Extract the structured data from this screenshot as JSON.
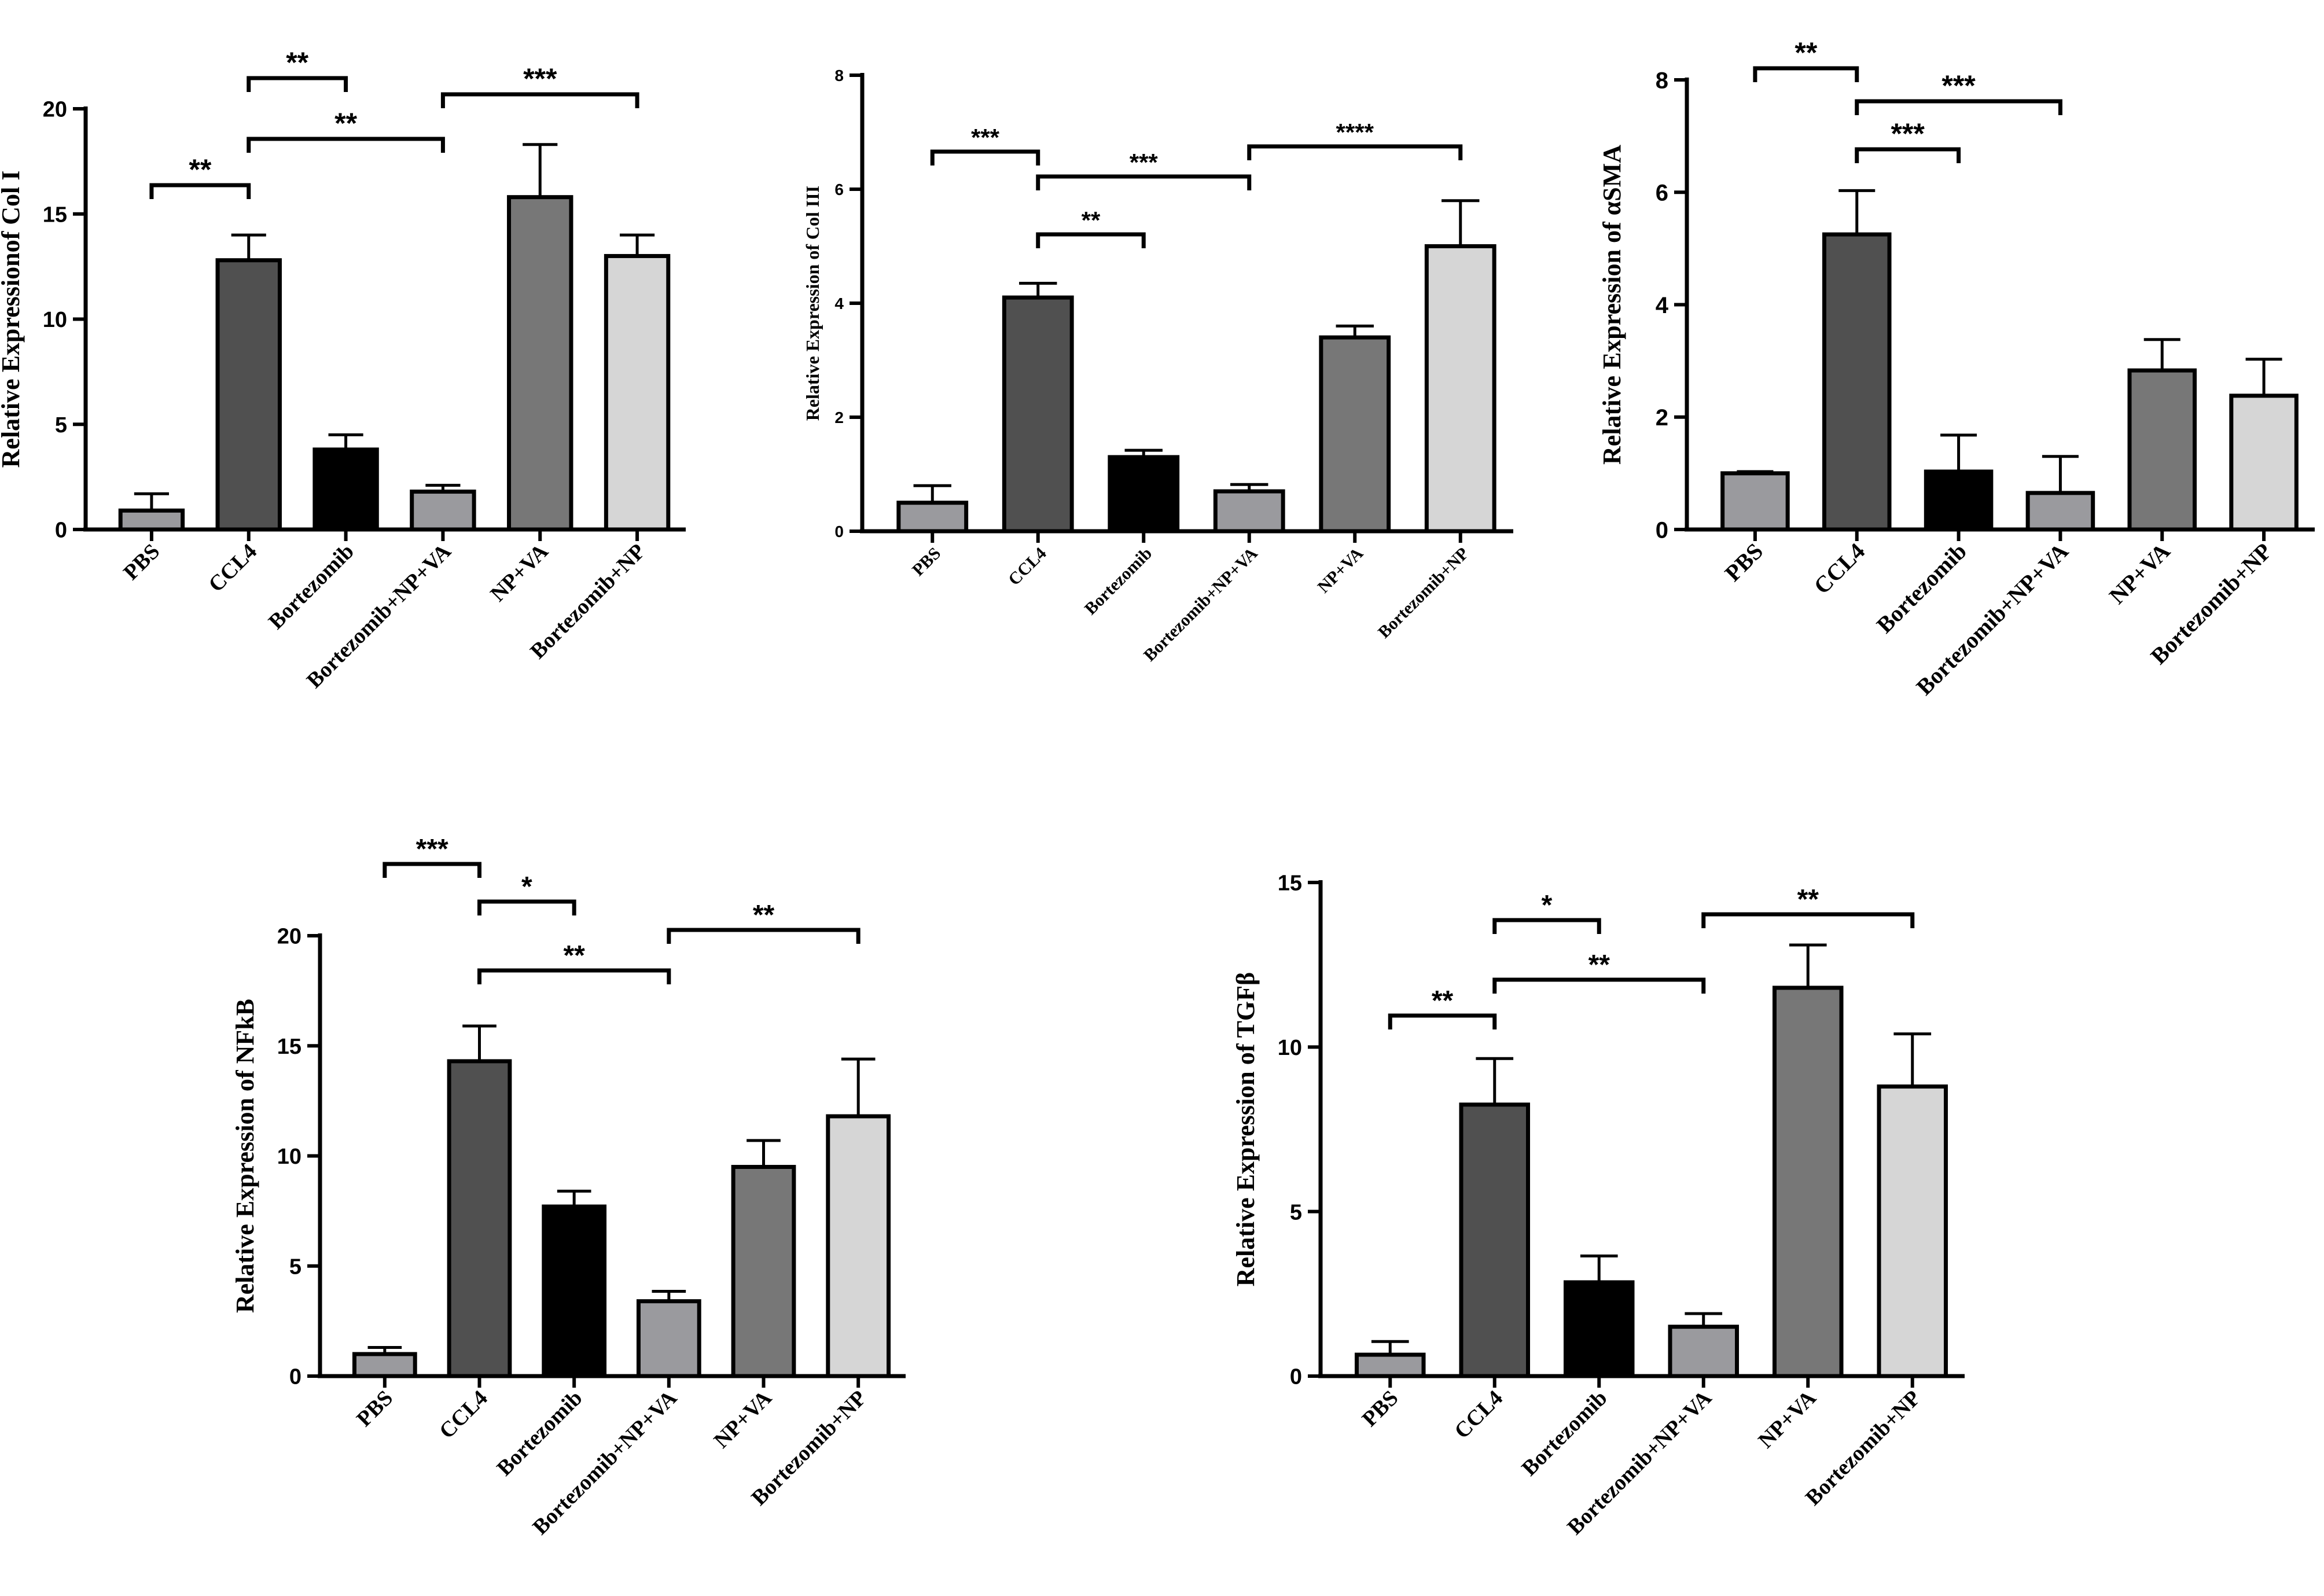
{
  "categories": [
    "PBS",
    "CCL4",
    "Bortezomib",
    "Bortezomib+NP+VA",
    "NP+VA",
    "Bortezomib+NP"
  ],
  "colors": {
    "PBS": "#9a9a9e",
    "CCL4": "#505050",
    "Bortezomib": "#000000",
    "Bortezomib+NP+VA": "#9a9a9e",
    "NP+VA": "#777777",
    "Bortezomib+NP": "#d6d6d6"
  },
  "chart_data": [
    {
      "type": "bar",
      "ylabel": "Relative Expressionof Col I",
      "ylim": [
        0,
        20
      ],
      "yticks": [
        "0",
        "5",
        "10",
        "15",
        "20"
      ],
      "values": [
        0.9,
        12.8,
        3.8,
        1.8,
        15.8,
        13.0
      ],
      "errors": [
        0.8,
        1.2,
        0.7,
        0.3,
        2.5,
        1.0
      ],
      "significance": [
        {
          "from": 0,
          "to": 1,
          "label": "**"
        },
        {
          "from": 1,
          "to": 2,
          "label": "**"
        },
        {
          "from": 1,
          "to": 3,
          "label": "**"
        },
        {
          "from": 3,
          "to": 5,
          "label": "***"
        }
      ]
    },
    {
      "type": "bar",
      "ylabel": "Relative Expression   of Col III",
      "ylim": [
        0,
        8
      ],
      "yticks": [
        "0",
        "2",
        "4",
        "6",
        "8"
      ],
      "values": [
        0.5,
        4.1,
        1.3,
        0.7,
        3.4,
        5.0
      ],
      "errors": [
        0.3,
        0.25,
        0.12,
        0.12,
        0.2,
        0.8
      ],
      "significance": [
        {
          "from": 0,
          "to": 1,
          "label": "***"
        },
        {
          "from": 1,
          "to": 2,
          "label": "**"
        },
        {
          "from": 1,
          "to": 3,
          "label": "***"
        },
        {
          "from": 3,
          "to": 5,
          "label": "****"
        }
      ]
    },
    {
      "type": "bar",
      "ylabel": "Relative Expression of αSMA",
      "ylim": [
        0,
        8
      ],
      "yticks": [
        "0",
        "2",
        "4",
        "6",
        "8"
      ],
      "values": [
        1.0,
        5.25,
        1.03,
        0.65,
        2.83,
        2.38
      ],
      "errors": [
        0.03,
        0.78,
        0.65,
        0.65,
        0.55,
        0.65
      ],
      "significance": [
        {
          "from": 0,
          "to": 1,
          "label": "**"
        },
        {
          "from": 1,
          "to": 2,
          "label": "***"
        },
        {
          "from": 1,
          "to": 3,
          "label": "***"
        }
      ]
    },
    {
      "type": "bar",
      "ylabel": "Relative Expression of NFkB",
      "ylim": [
        0,
        20
      ],
      "yticks": [
        "0",
        "5",
        "10",
        "15",
        "20"
      ],
      "values": [
        1.0,
        14.3,
        7.7,
        3.4,
        9.5,
        11.8
      ],
      "errors": [
        0.3,
        1.6,
        0.7,
        0.45,
        1.2,
        2.6
      ],
      "significance": [
        {
          "from": 0,
          "to": 1,
          "label": "***"
        },
        {
          "from": 1,
          "to": 2,
          "label": "*"
        },
        {
          "from": 1,
          "to": 3,
          "label": "**"
        },
        {
          "from": 3,
          "to": 5,
          "label": "**"
        }
      ]
    },
    {
      "type": "bar",
      "ylabel": "Relative Expression of  TGFβ",
      "ylim": [
        0,
        15
      ],
      "yticks": [
        "0",
        "5",
        "10",
        "15"
      ],
      "values": [
        0.65,
        8.25,
        2.85,
        1.5,
        11.8,
        8.8
      ],
      "errors": [
        0.4,
        1.4,
        0.8,
        0.4,
        1.3,
        1.6
      ],
      "significance": [
        {
          "from": 0,
          "to": 1,
          "label": "**"
        },
        {
          "from": 1,
          "to": 2,
          "label": "*"
        },
        {
          "from": 1,
          "to": 3,
          "label": "**"
        },
        {
          "from": 3,
          "to": 5,
          "label": "**"
        }
      ]
    }
  ]
}
